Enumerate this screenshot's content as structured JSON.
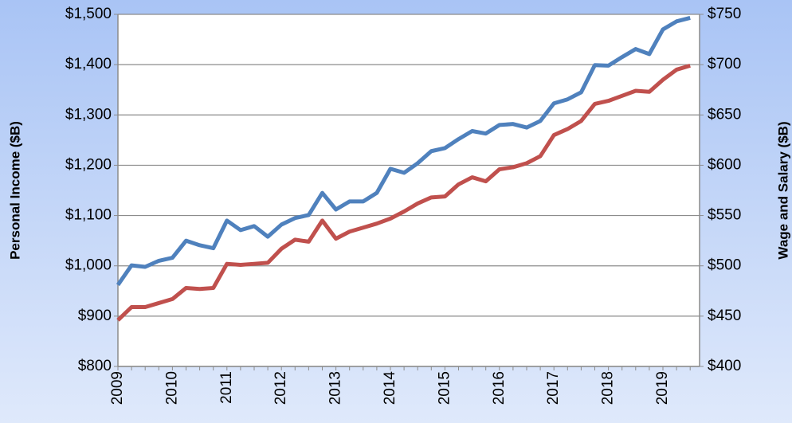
{
  "chart_data": {
    "type": "line",
    "ylabel": "Personal Income ($B)",
    "y2label": "Wage and Salary  ($B)",
    "categories": [
      "2009",
      null,
      null,
      null,
      "2010",
      null,
      null,
      null,
      "2011",
      null,
      null,
      null,
      "2012",
      null,
      null,
      null,
      "2013",
      null,
      null,
      null,
      "2014",
      null,
      null,
      null,
      "2015",
      null,
      null,
      null,
      "2016",
      null,
      null,
      null,
      "2017",
      null,
      null,
      null,
      "2018",
      null,
      null,
      null,
      "2019",
      null,
      null
    ],
    "series": [
      {
        "color": "#4f81bd",
        "axis": "y",
        "values": [
          962,
          1001,
          998,
          1010,
          1016,
          1050,
          1041,
          1035,
          1090,
          1071,
          1079,
          1058,
          1082,
          1095,
          1101,
          1145,
          1112,
          1128,
          1128,
          1145,
          1193,
          1185,
          1204,
          1228,
          1234,
          1252,
          1268,
          1263,
          1280,
          1282,
          1275,
          1288,
          1323,
          1331,
          1345,
          1399,
          1398,
          1415,
          1431,
          1421,
          1470,
          1486,
          1493
        ]
      },
      {
        "color": "#c0504d",
        "axis": "y2",
        "values": [
          446,
          459,
          459,
          463,
          467,
          478,
          477,
          478,
          502,
          501,
          502,
          503,
          517,
          526,
          524,
          545,
          527,
          534,
          538,
          542,
          547,
          554,
          562,
          568,
          569,
          581,
          588,
          584,
          596,
          598,
          602,
          609,
          630,
          636,
          644,
          661,
          664,
          669,
          674,
          673,
          685,
          695,
          699
        ]
      }
    ],
    "ylim": [
      800,
      1500
    ],
    "yticks": [
      {
        "value": 800,
        "label": "$800"
      },
      {
        "value": 900,
        "label": "$900"
      },
      {
        "value": 1000,
        "label": "$1,000"
      },
      {
        "value": 1100,
        "label": "$1,100"
      },
      {
        "value": 1200,
        "label": "$1,200"
      },
      {
        "value": 1300,
        "label": "$1,300"
      },
      {
        "value": 1400,
        "label": "$1,400"
      },
      {
        "value": 1500,
        "label": "$1,500"
      }
    ],
    "y2lim": [
      400,
      750
    ],
    "y2ticks": [
      {
        "value": 400,
        "label": "$400"
      },
      {
        "value": 450,
        "label": "$450"
      },
      {
        "value": 500,
        "label": "$500"
      },
      {
        "value": 550,
        "label": "$550"
      },
      {
        "value": 600,
        "label": "$600"
      },
      {
        "value": 650,
        "label": "$650"
      },
      {
        "value": 700,
        "label": "$700"
      },
      {
        "value": 750,
        "label": "$750"
      }
    ],
    "grid": true
  }
}
